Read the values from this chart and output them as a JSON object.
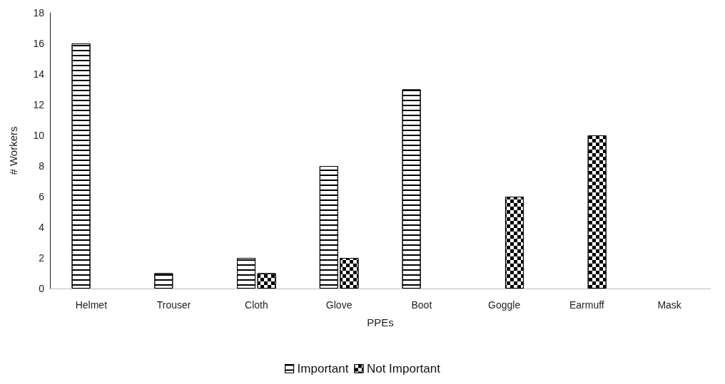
{
  "chart_data": {
    "type": "bar",
    "xlabel": "PPEs",
    "ylabel": "# Workers",
    "categories": [
      "Helmet",
      "Trouser",
      "Cloth",
      "Glove",
      "Boot",
      "Goggle",
      "Earmuff",
      "Mask"
    ],
    "series": [
      {
        "name": "Important",
        "color": "#ffffff",
        "values": [
          16,
          1,
          2,
          8,
          13,
          0,
          0,
          0
        ]
      },
      {
        "name": "Not Important",
        "color": "#ffffff",
        "values": [
          0,
          0,
          1,
          2,
          0,
          6,
          10,
          0
        ]
      }
    ],
    "ylim": [
      0,
      18
    ],
    "yticks": [
      0,
      2,
      4,
      6,
      8,
      10,
      12,
      14,
      16,
      18
    ],
    "grid": false,
    "legend": "bottom"
  }
}
